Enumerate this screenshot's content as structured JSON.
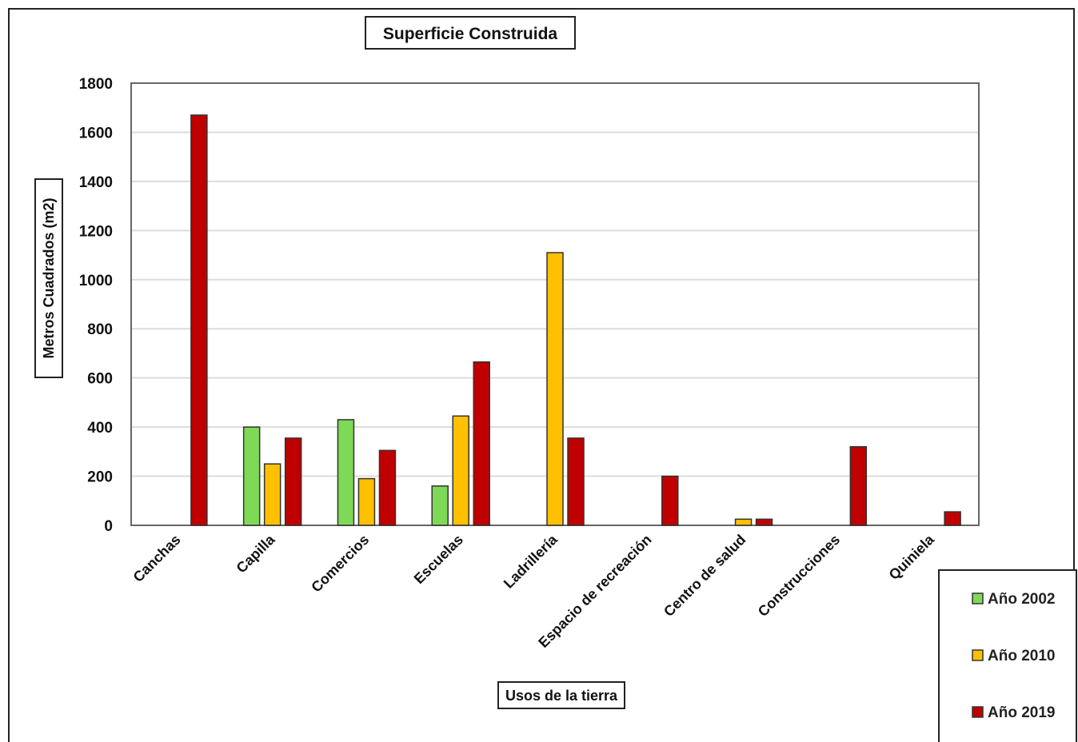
{
  "chart_data": {
    "type": "bar",
    "title": "Superficie Construida",
    "xlabel": "Usos de la tierra",
    "ylabel": "Metros Cuadrados (m2)",
    "ylim": [
      0,
      1800
    ],
    "yticks": [
      "0",
      "200",
      "400",
      "600",
      "800",
      "1000",
      "1200",
      "1400",
      "1600",
      "1800"
    ],
    "grid": true,
    "legend_position": "right",
    "categories": [
      "Canchas",
      "Capilla",
      "Comercios",
      "Escuelas",
      "Ladrillería",
      "Espacio de recreación",
      "Centro de salud",
      "Construcciones",
      "Quiniela"
    ],
    "series": [
      {
        "name": "Año 2002",
        "color": "#7ed957",
        "values": [
          0,
          400,
          430,
          160,
          0,
          0,
          0,
          0,
          0
        ]
      },
      {
        "name": "Año 2010",
        "color": "#ffc000",
        "values": [
          0,
          250,
          190,
          445,
          1110,
          0,
          25,
          0,
          0
        ]
      },
      {
        "name": "Año 2019",
        "color": "#c00000",
        "values": [
          1670,
          355,
          305,
          665,
          355,
          200,
          25,
          320,
          55
        ]
      }
    ]
  }
}
